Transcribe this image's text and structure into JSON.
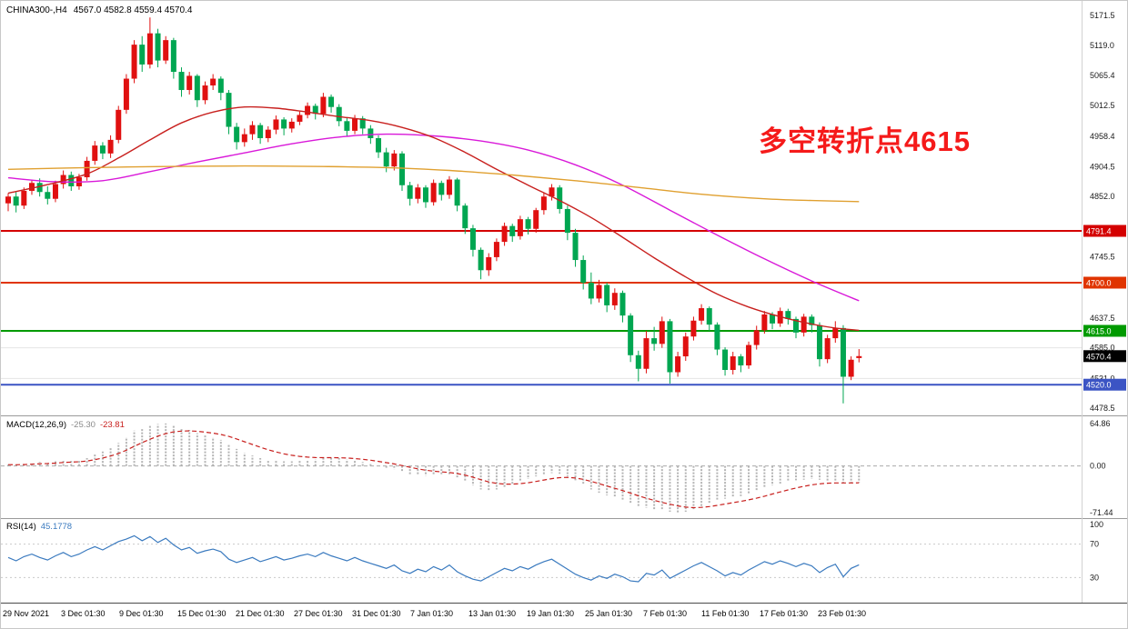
{
  "header": {
    "symbol": "CHINA300-,H4",
    "ohlc": "4567.0 4582.8 4559.4 4570.4"
  },
  "annotation": {
    "text": "多空转折点4615",
    "color": "#f51a1a"
  },
  "indicators": {
    "macd": {
      "name": "MACD(12,26,9)",
      "value_main": "-25.30",
      "value_signal": "-23.81"
    },
    "rsi": {
      "name": "RSI(14)",
      "value": "45.1778"
    }
  },
  "chart_data": [
    {
      "panel": "price",
      "type": "candlestick",
      "symbol": "CHINA300-,H4",
      "timeframe": "H4",
      "current_ohlc": {
        "open": 4567.0,
        "high": 4582.8,
        "low": 4559.4,
        "close": 4570.4
      },
      "last_price": 4570.4,
      "ylim": [
        4467.4,
        5197.2
      ],
      "grid": false,
      "y_ticks": [
        5171.5,
        5119.0,
        5065.4,
        5012.5,
        4958.4,
        4904.5,
        4852.0,
        4745.5,
        4637.5,
        4585.0,
        4531.0,
        4478.5
      ],
      "x_labels": [
        "29 Nov 2021",
        "3 Dec 01:30",
        "9 Dec 01:30",
        "15 Dec 01:30",
        "21 Dec 01:30",
        "27 Dec 01:30",
        "31 Dec 01:30",
        "7 Jan 01:30",
        "13 Jan 01:30",
        "19 Jan 01:30",
        "25 Jan 01:30",
        "7 Feb 01:30",
        "11 Feb 01:30",
        "17 Feb 01:30",
        "23 Feb 01:30"
      ],
      "colors": {
        "up": "#e01010",
        "down": "#00a651"
      },
      "h_lines": [
        {
          "price": 4791.4,
          "color": "#d40000",
          "width": 2
        },
        {
          "price": 4700.0,
          "color": "#e03400",
          "width": 2
        },
        {
          "price": 4615.0,
          "color": "#009a00",
          "width": 2
        },
        {
          "price": 4520.0,
          "color": "#3b54c4",
          "width": 2
        }
      ],
      "faint_lines": [
        4585.0,
        4531.0
      ],
      "ma_lines": [
        {
          "name": "ma-magenta",
          "color": "#d919d9",
          "points": [
            [
              0,
              4885
            ],
            [
              6,
              4878
            ],
            [
              12,
              4880
            ],
            [
              18,
              4896
            ],
            [
              24,
              4913
            ],
            [
              30,
              4929
            ],
            [
              36,
              4945
            ],
            [
              42,
              4957
            ],
            [
              48,
              4962
            ],
            [
              54,
              4959
            ],
            [
              60,
              4950
            ],
            [
              66,
              4934
            ],
            [
              72,
              4908
            ],
            [
              78,
              4872
            ],
            [
              84,
              4828
            ],
            [
              90,
              4784
            ],
            [
              96,
              4742
            ],
            [
              102,
              4703
            ],
            [
              108,
              4668
            ]
          ]
        },
        {
          "name": "ma-red",
          "color": "#c8201e",
          "points": [
            [
              0,
              4858
            ],
            [
              5,
              4873
            ],
            [
              10,
              4892
            ],
            [
              14,
              4920
            ],
            [
              18,
              4952
            ],
            [
              22,
              4982
            ],
            [
              26,
              5001
            ],
            [
              30,
              5010
            ],
            [
              34,
              5008
            ],
            [
              38,
              5001
            ],
            [
              42,
              4993
            ],
            [
              46,
              4986
            ],
            [
              50,
              4974
            ],
            [
              54,
              4956
            ],
            [
              58,
              4930
            ],
            [
              62,
              4900
            ],
            [
              66,
              4872
            ],
            [
              70,
              4845
            ],
            [
              74,
              4815
            ],
            [
              78,
              4780
            ],
            [
              82,
              4744
            ],
            [
              86,
              4710
            ],
            [
              90,
              4680
            ],
            [
              94,
              4657
            ],
            [
              98,
              4640
            ],
            [
              102,
              4627
            ],
            [
              105,
              4620
            ],
            [
              108,
              4616
            ]
          ]
        },
        {
          "name": "ma-orange",
          "color": "#e0a030",
          "points": [
            [
              0,
              4900
            ],
            [
              10,
              4903
            ],
            [
              20,
              4905
            ],
            [
              30,
              4906
            ],
            [
              40,
              4905
            ],
            [
              48,
              4903
            ],
            [
              56,
              4898
            ],
            [
              64,
              4890
            ],
            [
              72,
              4880
            ],
            [
              80,
              4868
            ],
            [
              88,
              4856
            ],
            [
              96,
              4848
            ],
            [
              102,
              4845
            ],
            [
              108,
              4843
            ]
          ]
        }
      ],
      "candles": [
        [
          4840,
          4858,
          4826,
          4852
        ],
        [
          4852,
          4860,
          4824,
          4836
        ],
        [
          4836,
          4868,
          4830,
          4862
        ],
        [
          4862,
          4882,
          4855,
          4876
        ],
        [
          4876,
          4884,
          4852,
          4860
        ],
        [
          4860,
          4870,
          4838,
          4848
        ],
        [
          4848,
          4880,
          4842,
          4874
        ],
        [
          4874,
          4898,
          4866,
          4890
        ],
        [
          4890,
          4896,
          4862,
          4870
        ],
        [
          4870,
          4892,
          4864,
          4886
        ],
        [
          4886,
          4922,
          4880,
          4915
        ],
        [
          4915,
          4950,
          4908,
          4942
        ],
        [
          4942,
          4948,
          4918,
          4928
        ],
        [
          4928,
          4960,
          4920,
          4952
        ],
        [
          4952,
          5012,
          4946,
          5005
        ],
        [
          5005,
          5068,
          4998,
          5060
        ],
        [
          5060,
          5128,
          5052,
          5120
        ],
        [
          5120,
          5135,
          5072,
          5085
        ],
        [
          5085,
          5168,
          5078,
          5140
        ],
        [
          5140,
          5148,
          5080,
          5092
        ],
        [
          5092,
          5135,
          5086,
          5128
        ],
        [
          5128,
          5132,
          5060,
          5072
        ],
        [
          5072,
          5080,
          5028,
          5040
        ],
        [
          5040,
          5072,
          5032,
          5065
        ],
        [
          5065,
          5068,
          5010,
          5022
        ],
        [
          5022,
          5055,
          5015,
          5048
        ],
        [
          5048,
          5068,
          5040,
          5060
        ],
        [
          5060,
          5064,
          5022,
          5035
        ],
        [
          5035,
          5040,
          4962,
          4975
        ],
        [
          4975,
          4982,
          4935,
          4948
        ],
        [
          4948,
          4972,
          4940,
          4962
        ],
        [
          4962,
          4985,
          4952,
          4978
        ],
        [
          4978,
          4982,
          4945,
          4955
        ],
        [
          4955,
          4976,
          4948,
          4970
        ],
        [
          4970,
          4995,
          4962,
          4988
        ],
        [
          4988,
          4992,
          4960,
          4972
        ],
        [
          4972,
          4990,
          4965,
          4984
        ],
        [
          4984,
          5002,
          4978,
          4996
        ],
        [
          4996,
          5018,
          4990,
          5012
        ],
        [
          5012,
          5016,
          4988,
          4998
        ],
        [
          4998,
          5035,
          4992,
          5028
        ],
        [
          5028,
          5032,
          5000,
          5010
        ],
        [
          5010,
          5015,
          4976,
          4985
        ],
        [
          4985,
          4992,
          4958,
          4968
        ],
        [
          4968,
          4996,
          4962,
          4990
        ],
        [
          4990,
          4994,
          4962,
          4972
        ],
        [
          4972,
          4978,
          4945,
          4955
        ],
        [
          4955,
          4960,
          4920,
          4930
        ],
        [
          4930,
          4938,
          4895,
          4905
        ],
        [
          4905,
          4934,
          4898,
          4928
        ],
        [
          4928,
          4932,
          4862,
          4872
        ],
        [
          4872,
          4878,
          4836,
          4848
        ],
        [
          4848,
          4874,
          4840,
          4868
        ],
        [
          4868,
          4872,
          4832,
          4842
        ],
        [
          4842,
          4882,
          4836,
          4876
        ],
        [
          4876,
          4880,
          4845,
          4855
        ],
        [
          4855,
          4888,
          4848,
          4882
        ],
        [
          4882,
          4885,
          4826,
          4836
        ],
        [
          4836,
          4840,
          4786,
          4796
        ],
        [
          4796,
          4802,
          4746,
          4758
        ],
        [
          4758,
          4762,
          4706,
          4722
        ],
        [
          4722,
          4752,
          4712,
          4745
        ],
        [
          4745,
          4778,
          4738,
          4772
        ],
        [
          4772,
          4806,
          4765,
          4800
        ],
        [
          4800,
          4804,
          4772,
          4782
        ],
        [
          4782,
          4818,
          4776,
          4812
        ],
        [
          4812,
          4816,
          4785,
          4795
        ],
        [
          4795,
          4832,
          4788,
          4828
        ],
        [
          4828,
          4858,
          4820,
          4852
        ],
        [
          4852,
          4874,
          4845,
          4868
        ],
        [
          4868,
          4872,
          4822,
          4830
        ],
        [
          4830,
          4836,
          4775,
          4788
        ],
        [
          4788,
          4795,
          4728,
          4740
        ],
        [
          4740,
          4748,
          4688,
          4700
        ],
        [
          4700,
          4718,
          4662,
          4672
        ],
        [
          4672,
          4705,
          4665,
          4696
        ],
        [
          4696,
          4700,
          4648,
          4660
        ],
        [
          4660,
          4690,
          4652,
          4682
        ],
        [
          4682,
          4686,
          4630,
          4642
        ],
        [
          4642,
          4646,
          4560,
          4572
        ],
        [
          4572,
          4580,
          4526,
          4548
        ],
        [
          4548,
          4615,
          4540,
          4602
        ],
        [
          4602,
          4622,
          4580,
          4592
        ],
        [
          4592,
          4640,
          4585,
          4632
        ],
        [
          4632,
          4636,
          4522,
          4542
        ],
        [
          4542,
          4578,
          4534,
          4570
        ],
        [
          4570,
          4612,
          4562,
          4605
        ],
        [
          4605,
          4640,
          4598,
          4633
        ],
        [
          4633,
          4662,
          4626,
          4655
        ],
        [
          4655,
          4658,
          4615,
          4626
        ],
        [
          4626,
          4630,
          4572,
          4582
        ],
        [
          4582,
          4586,
          4536,
          4546
        ],
        [
          4546,
          4578,
          4538,
          4570
        ],
        [
          4570,
          4574,
          4542,
          4554
        ],
        [
          4554,
          4596,
          4548,
          4590
        ],
        [
          4590,
          4624,
          4582,
          4616
        ],
        [
          4616,
          4650,
          4610,
          4644
        ],
        [
          4644,
          4648,
          4618,
          4628
        ],
        [
          4628,
          4656,
          4622,
          4650
        ],
        [
          4650,
          4654,
          4626,
          4636
        ],
        [
          4636,
          4640,
          4602,
          4612
        ],
        [
          4612,
          4645,
          4605,
          4640
        ],
        [
          4640,
          4644,
          4612,
          4625
        ],
        [
          4625,
          4630,
          4552,
          4565
        ],
        [
          4565,
          4608,
          4558,
          4602
        ],
        [
          4602,
          4632,
          4594,
          4620
        ],
        [
          4620,
          4625,
          4487,
          4534
        ],
        [
          4534,
          4570,
          4528,
          4564
        ],
        [
          4567.0,
          4582.8,
          4559.4,
          4570.4
        ]
      ]
    },
    {
      "panel": "macd",
      "type": "macd",
      "label": "MACD(12,26,9)",
      "values": {
        "macd": -25.3,
        "signal": -23.81
      },
      "ylim": [
        -78.4,
        74.5
      ],
      "y_ticks": [
        64.86,
        0,
        -71.44
      ],
      "colors": {
        "histogram": "#b4b4b4",
        "signal": "#c8201e"
      },
      "histogram": [
        2,
        1,
        3,
        5,
        6,
        5,
        7,
        9,
        8,
        9,
        12,
        18,
        22,
        27,
        35,
        44,
        54,
        58,
        62,
        64,
        64.86,
        63,
        58,
        55,
        50,
        47,
        44,
        40,
        33,
        26,
        20,
        16,
        12,
        9,
        8,
        7,
        7,
        8,
        9,
        10,
        12,
        13,
        12,
        10,
        8,
        6,
        3,
        0,
        -3,
        -5,
        -9,
        -13,
        -14,
        -15,
        -14,
        -13,
        -14,
        -18,
        -24,
        -30,
        -36,
        -38,
        -36,
        -32,
        -28,
        -24,
        -20,
        -16,
        -13,
        -11,
        -12,
        -16,
        -22,
        -29,
        -36,
        -41,
        -45,
        -48,
        -52,
        -57,
        -62,
        -64,
        -66,
        -68,
        -70,
        -71.44,
        -70,
        -67,
        -62,
        -57,
        -53,
        -50,
        -48,
        -46,
        -43,
        -39,
        -34,
        -30,
        -27,
        -24,
        -22,
        -21,
        -20,
        -21,
        -23,
        -24,
        -26,
        -26,
        -25.3
      ]
    },
    {
      "panel": "rsi",
      "type": "line",
      "label": "RSI(14)",
      "value": 45.1778,
      "ylim": [
        0,
        100
      ],
      "levels": [
        70,
        30
      ],
      "y_ticks": [
        100,
        70,
        30
      ],
      "color": "#3a7abf",
      "values": [
        54,
        50,
        55,
        58,
        54,
        51,
        56,
        60,
        55,
        58,
        63,
        67,
        63,
        68,
        73,
        76,
        80,
        74,
        79,
        72,
        77,
        69,
        63,
        66,
        59,
        62,
        64,
        61,
        52,
        48,
        51,
        54,
        49,
        52,
        55,
        51,
        53,
        56,
        58,
        55,
        60,
        56,
        53,
        50,
        54,
        50,
        47,
        44,
        41,
        45,
        38,
        35,
        40,
        37,
        43,
        39,
        45,
        37,
        32,
        28,
        26,
        31,
        36,
        41,
        38,
        43,
        40,
        45,
        49,
        52,
        46,
        40,
        34,
        30,
        27,
        32,
        29,
        34,
        31,
        26,
        25,
        35,
        33,
        39,
        29,
        34,
        39,
        44,
        48,
        43,
        38,
        32,
        36,
        33,
        39,
        44,
        49,
        46,
        50,
        47,
        43,
        47,
        44,
        36,
        42,
        46,
        31,
        41,
        45.18
      ]
    }
  ]
}
